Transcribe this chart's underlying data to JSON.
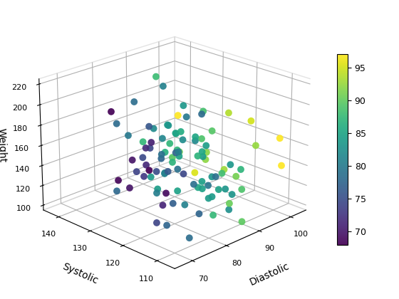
{
  "title": "",
  "xlabel": "Systolic",
  "ylabel": "Diastolic",
  "zlabel": "Weight",
  "xlim": [
    105,
    145
  ],
  "ylim": [
    65,
    105
  ],
  "zlim": [
    95,
    225
  ],
  "xticks": [
    110,
    120,
    130,
    140
  ],
  "yticks": [
    70,
    80,
    90,
    100
  ],
  "zticks": [
    100,
    120,
    140,
    160,
    180,
    200,
    220
  ],
  "colorbar_min": 68,
  "colorbar_max": 97,
  "colorbar_ticks": [
    70,
    75,
    80,
    85,
    90,
    95
  ],
  "marker_size": 50,
  "seed": 42,
  "n_points": 100,
  "systolic_mean": 120,
  "systolic_std": 9,
  "diastolic_mean": 82,
  "diastolic_std": 7,
  "weight_mean": 153,
  "weight_std": 27,
  "elev": 22,
  "azim": -135,
  "cmap": "viridis"
}
